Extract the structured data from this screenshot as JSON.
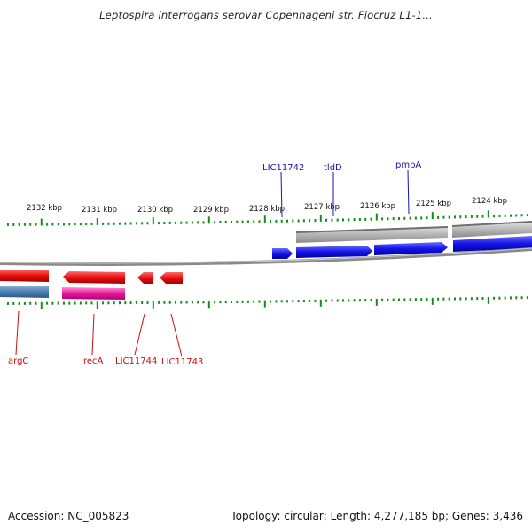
{
  "title": "Leptospira interrogans serovar Copenhageni str. Fiocruz L1-1...",
  "footer": {
    "accession": "Accession: NC_005823",
    "summary": "Topology: circular; Length: 4,277,185 bp; Genes: 3,436"
  },
  "axis": {
    "tick_labels": [
      "2132 kbp",
      "2131 kbp",
      "2130 kbp",
      "2129 kbp",
      "2128 kbp",
      "2127 kbp",
      "2126 kbp",
      "2125 kbp",
      "2124 kbp"
    ]
  },
  "genes_forward": [
    {
      "name": "LIC11742"
    },
    {
      "name": "tldD"
    },
    {
      "name": "pmbA"
    }
  ],
  "genes_reverse": [
    {
      "name": "argC"
    },
    {
      "name": "recA"
    },
    {
      "name": "LIC11744"
    },
    {
      "name": "LIC11743"
    }
  ],
  "colors": {
    "forward_gene": "#1414e6",
    "reverse_gene": "#e60f0f",
    "reverse_rna": "#e8199a",
    "forward_feature": "#b3b3b3",
    "reverse_feature": "#4a7fb3",
    "backbone": "#8a8a8a",
    "ticks": "#1a8a1a"
  }
}
